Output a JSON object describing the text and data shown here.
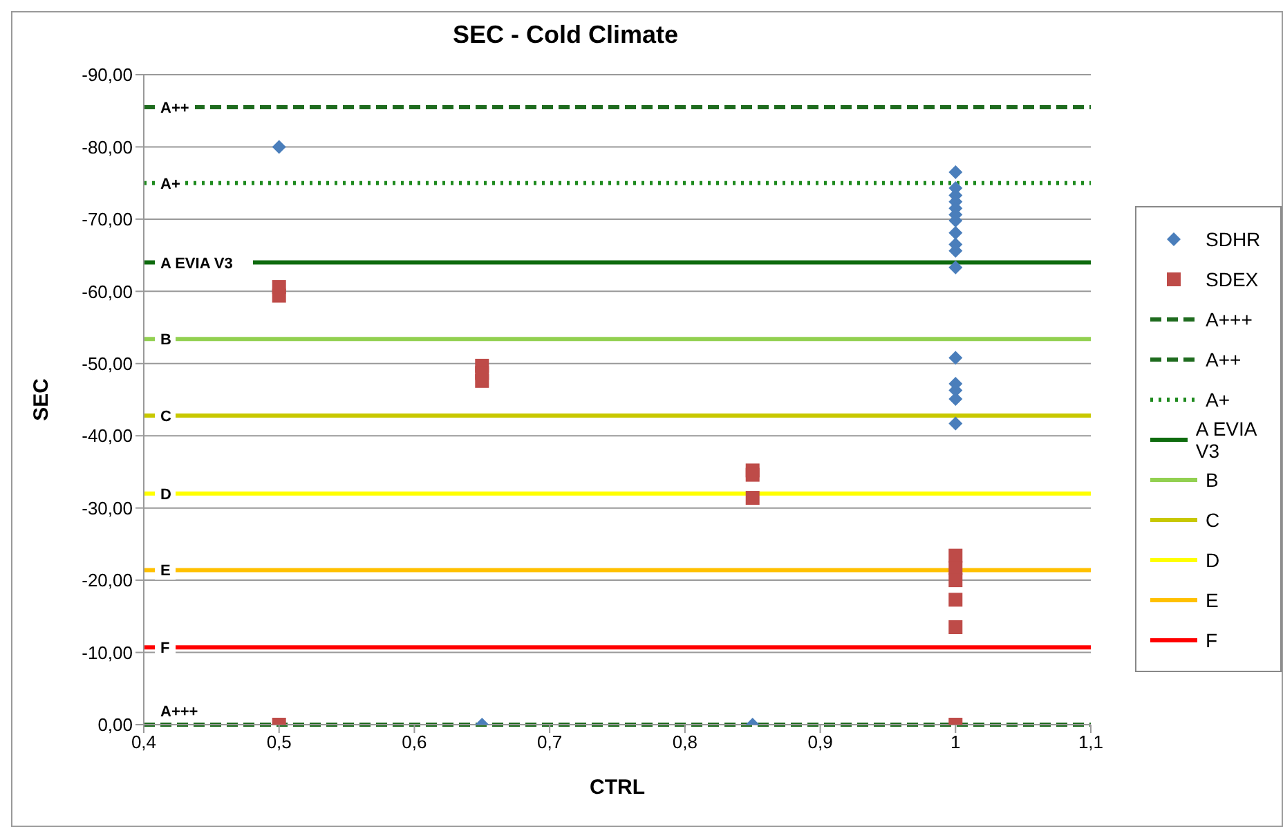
{
  "chart_data": {
    "type": "scatter",
    "title": "SEC - Cold Climate",
    "xlabel": "CTRL",
    "ylabel": "SEC",
    "series": [
      {
        "name": "SDHR",
        "color": "#4a7ebb",
        "marker": "diamond",
        "x": [
          0.5,
          0.65,
          0.85,
          1,
          1,
          1,
          1,
          1,
          1,
          1,
          1,
          1,
          1,
          1,
          1,
          1,
          1,
          1,
          1
        ],
        "values": [
          -80,
          0,
          0,
          -76.5,
          -74.3,
          -73.3,
          -72.4,
          -71.5,
          -70.6,
          -69.8,
          -68.1,
          -66.5,
          -65.6,
          -63.3,
          -50.8,
          -47.2,
          -46.3,
          -45.1,
          -41.7
        ]
      },
      {
        "name": "SDEX",
        "color": "#be4b48",
        "marker": "square",
        "x": [
          0.5,
          0.5,
          0.5,
          0.65,
          0.65,
          0.65,
          0.85,
          0.85,
          0.85,
          1,
          1,
          1,
          1,
          1,
          1
        ],
        "values": [
          -60.6,
          -59.4,
          0,
          -49.7,
          -48.7,
          -47.6,
          -35.2,
          -34.6,
          -31.4,
          -23.4,
          -21.7,
          -20,
          -17.3,
          -13.5,
          0
        ]
      }
    ],
    "ref_lines": [
      {
        "axis": "y",
        "value": 0,
        "label": "A+++",
        "color": "#1e6b1e",
        "line_style": "dashed"
      },
      {
        "axis": "y",
        "value": -85.5,
        "label": "A++",
        "color": "#1e6b1e",
        "line_style": "dashed"
      },
      {
        "axis": "y",
        "value": -75,
        "label": "A+",
        "color": "#1e8a1e",
        "line_style": "dotted"
      },
      {
        "axis": "y",
        "value": -64,
        "label": "A EVIA V3",
        "color": "#0e6b0e",
        "line_style": "solid"
      },
      {
        "axis": "y",
        "value": -53.4,
        "label": "B",
        "color": "#92d050",
        "line_style": "solid"
      },
      {
        "axis": "y",
        "value": -42.8,
        "label": "C",
        "color": "#c8c800",
        "line_style": "solid"
      },
      {
        "axis": "y",
        "value": -32,
        "label": "D",
        "color": "#ffff00",
        "line_style": "solid"
      },
      {
        "axis": "y",
        "value": -21.4,
        "label": "E",
        "color": "#ffc000",
        "line_style": "solid"
      },
      {
        "axis": "y",
        "value": -10.7,
        "label": "F",
        "color": "#ff0000",
        "line_style": "solid"
      }
    ],
    "xlim": [
      0.4,
      1.1
    ],
    "xticks": [
      {
        "value": 0.4,
        "label": "0,4"
      },
      {
        "value": 0.5,
        "label": "0,5"
      },
      {
        "value": 0.6,
        "label": "0,6"
      },
      {
        "value": 0.7,
        "label": "0,7"
      },
      {
        "value": 0.8,
        "label": "0,8"
      },
      {
        "value": 0.9,
        "label": "0,9"
      },
      {
        "value": 1,
        "label": "1"
      },
      {
        "value": 1.1,
        "label": "1,1"
      }
    ],
    "ylim": [
      0,
      -90
    ],
    "yticks": [
      {
        "value": 0,
        "label": "0,00"
      },
      {
        "value": -10,
        "label": "-10,00"
      },
      {
        "value": -20,
        "label": "-20,00"
      },
      {
        "value": -30,
        "label": "-30,00"
      },
      {
        "value": -40,
        "label": "-40,00"
      },
      {
        "value": -50,
        "label": "-50,00"
      },
      {
        "value": -60,
        "label": "-60,00"
      },
      {
        "value": -70,
        "label": "-70,00"
      },
      {
        "value": -80,
        "label": "-80,00"
      },
      {
        "value": -90,
        "label": "-90,00"
      }
    ],
    "grid": "y",
    "legend": "right"
  }
}
